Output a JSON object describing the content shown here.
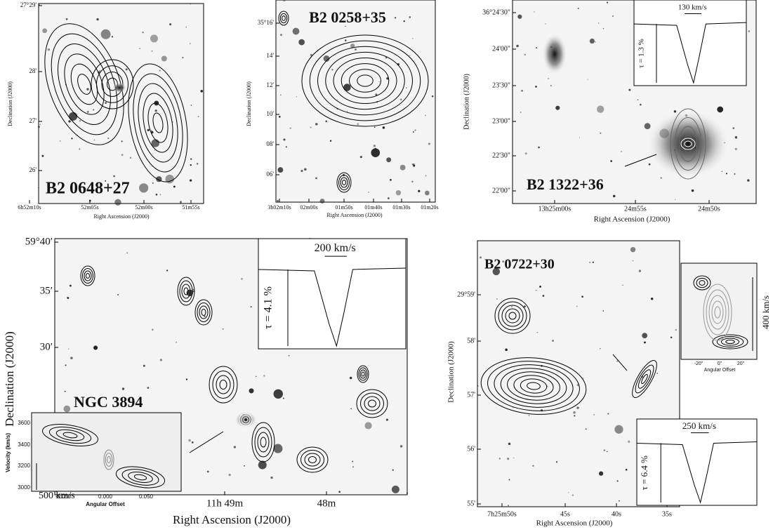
{
  "panels": [
    {
      "label": "B2 0648+27",
      "xlabel": "Right Ascension (J2000)",
      "ylabel": "Declination (J2000)",
      "xticks": [
        "6h52m10s",
        "52m05s",
        "52m00s",
        "51m55s"
      ],
      "yticks": [
        "27°29'",
        "28'",
        "27'",
        "26'"
      ]
    },
    {
      "label": "B2 0258+35",
      "xlabel": "Right Ascension (J2000)",
      "ylabel": "Declination (J2000)",
      "xticks": [
        "3h02m10s",
        "02m00s",
        "01m50s",
        "01m40s",
        "01m30s",
        "01m20s"
      ],
      "yticks": [
        "35°16'",
        "14'",
        "12'",
        "10'",
        "08'",
        "06'"
      ]
    },
    {
      "label": "B2 1322+36",
      "xlabel": "Right Ascension (J2000)",
      "ylabel": "Declination (J2000)",
      "xticks": [
        "13h25m00s",
        "24m55s",
        "24m50s"
      ],
      "yticks": [
        "36°24'30\"",
        "24'00\"",
        "23'30\"",
        "23'00\"",
        "22'30\"",
        "22'00\""
      ],
      "spectrum": {
        "velocity_bar": "130 km/s",
        "optical_depth": "τ = 1.3 %"
      }
    },
    {
      "label": "NGC 3894",
      "xlabel": "Right Ascension (J2000)",
      "ylabel": "Declination (J2000)",
      "xticks": [
        "11h 49m",
        "48m"
      ],
      "yticks": [
        "59°40′",
        "35′",
        "30′"
      ],
      "spectrum": {
        "velocity_bar": "200 km/s",
        "optical_depth": "τ = 4.1 %"
      },
      "pv_diagram": {
        "xlabel": "Angular Offset",
        "ylabel": "Velocity (km/s)",
        "xticks": [
          "-0.050",
          "0.000",
          "0.050"
        ],
        "yticks": [
          "3600",
          "3400",
          "3200",
          "3000"
        ],
        "velocity_bar": "500 km/s"
      }
    },
    {
      "label": "B2 0722+30",
      "xlabel": "Right Ascension (J2000)",
      "ylabel": "Declination (J2000)",
      "xticks": [
        "7h25m50s",
        "45s",
        "40s",
        "35s"
      ],
      "yticks": [
        "29°59'",
        "58'",
        "57'",
        "56'",
        "55'"
      ],
      "spectrum": {
        "velocity_bar": "250 km/s",
        "optical_depth": "τ = 6.4 %"
      },
      "pv_diagram": {
        "xlabel": "Angular Offset",
        "xticks": [
          "-20\"",
          "0\"",
          "20\""
        ],
        "velocity_bar": "400 km/s"
      }
    }
  ]
}
